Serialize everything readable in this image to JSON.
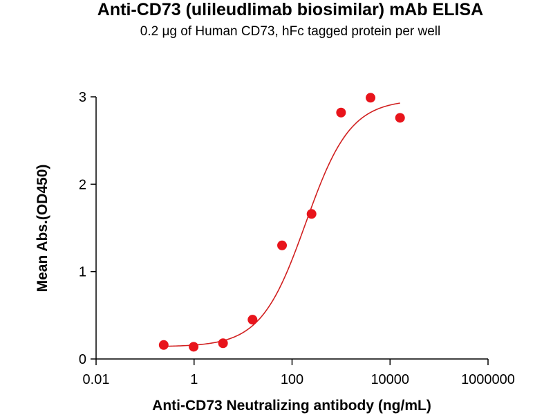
{
  "chart_data": {
    "type": "scatter",
    "title": "Anti-CD73 (ulileudlimab biosimilar) mAb ELISA",
    "subtitle": "0.2 μg of Human CD73, hFc tagged protein per well",
    "xlabel": "Anti-CD73 Neutralizing antibody (ng/mL)",
    "ylabel": "Mean Abs.(OD450)",
    "xscale": "log",
    "xlim": [
      0.01,
      1000000
    ],
    "ylim": [
      0,
      3
    ],
    "x_ticks": [
      0.01,
      1,
      100,
      10000,
      1000000
    ],
    "x_tick_labels": [
      "0.01",
      "1",
      "100",
      "10000",
      "1000000"
    ],
    "y_ticks": [
      0,
      1,
      2,
      3
    ],
    "y_tick_labels": [
      "0",
      "1",
      "2",
      "3"
    ],
    "marker_color": "#e8141b",
    "curve_color": "#d12020",
    "series": [
      {
        "name": "Mean Abs.(OD450)",
        "x": [
          0.24,
          0.98,
          3.9,
          15.6,
          62.5,
          250,
          1000,
          4000,
          16000
        ],
        "y": [
          0.16,
          0.14,
          0.18,
          0.45,
          1.3,
          1.66,
          2.82,
          2.99,
          2.76
        ]
      }
    ],
    "fit": {
      "model": "4PL",
      "bottom": 0.14,
      "top": 2.97,
      "ec50": 190,
      "hill": 0.95,
      "x_range": [
        0.24,
        16000
      ]
    }
  }
}
